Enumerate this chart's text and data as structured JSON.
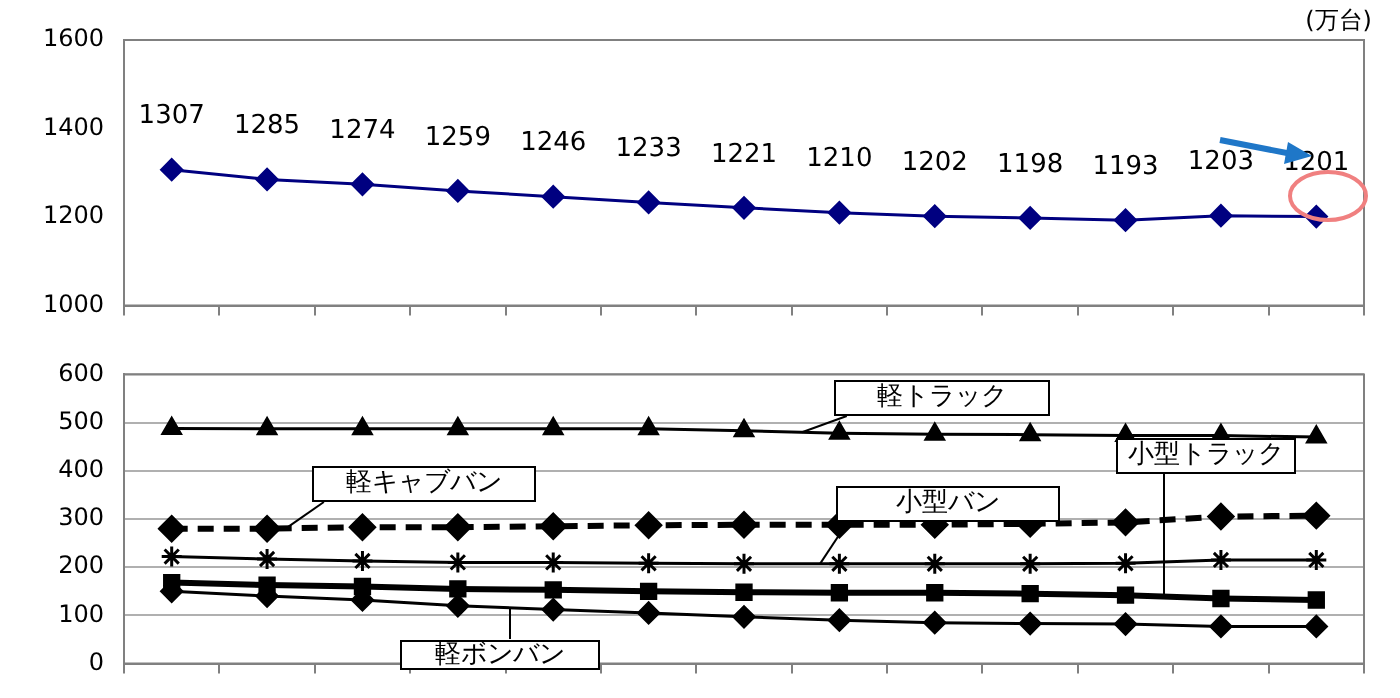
{
  "chart_data": [
    {
      "type": "line",
      "categories": [
        null,
        null,
        null,
        null,
        null,
        null,
        null,
        null,
        null,
        null,
        null,
        null,
        null
      ],
      "series": [
        {
          "color": "#000080",
          "values": [
            1307,
            1285,
            1274,
            1259,
            1246,
            1233,
            1221,
            1210,
            1202,
            1198,
            1193,
            1203,
            1201
          ]
        }
      ],
      "ylim": [
        1000,
        1600
      ],
      "yticks": [
        1000,
        1200,
        1400,
        1600
      ],
      "tick_labels": "y",
      "grid": false,
      "legend": false,
      "marker": "diamond",
      "data_labels": true,
      "annotations": [
        "(万台)"
      ]
    },
    {
      "type": "line",
      "categories": [
        null,
        null,
        null,
        null,
        null,
        null,
        null,
        null,
        null,
        null,
        null,
        null,
        null
      ],
      "series": [
        {
          "name": "軽トラック",
          "color": "#000000",
          "marker": "triangle",
          "values": [
            488,
            487,
            487,
            487,
            487,
            487,
            483,
            478,
            476,
            475,
            473,
            473,
            470
          ]
        },
        {
          "name": "軽キャブバン",
          "color": "#000000",
          "marker": "diamond",
          "line_style": "dashed",
          "values": [
            280,
            280,
            283,
            283,
            285,
            287,
            288,
            288,
            288,
            290,
            293,
            305,
            307
          ]
        },
        {
          "name": "小型バン",
          "color": "#000000",
          "marker": "cross",
          "values": [
            222,
            217,
            213,
            210,
            210,
            208,
            207,
            207,
            207,
            207,
            208,
            215,
            215
          ]
        },
        {
          "name": "小型トラック",
          "color": "#000000",
          "marker": "square",
          "values": [
            168,
            163,
            160,
            155,
            153,
            150,
            148,
            147,
            147,
            145,
            142,
            135,
            132
          ]
        },
        {
          "name": "軽ボンバン",
          "color": "#000000",
          "marker": "diamond",
          "values": [
            150,
            140,
            132,
            120,
            112,
            105,
            97,
            90,
            85,
            83,
            82,
            77,
            77
          ]
        }
      ],
      "ylim": [
        0,
        600
      ],
      "yticks": [
        0,
        100,
        200,
        300,
        400,
        500,
        600
      ],
      "tick_labels": "y",
      "grid": "y",
      "legend": false
    }
  ]
}
